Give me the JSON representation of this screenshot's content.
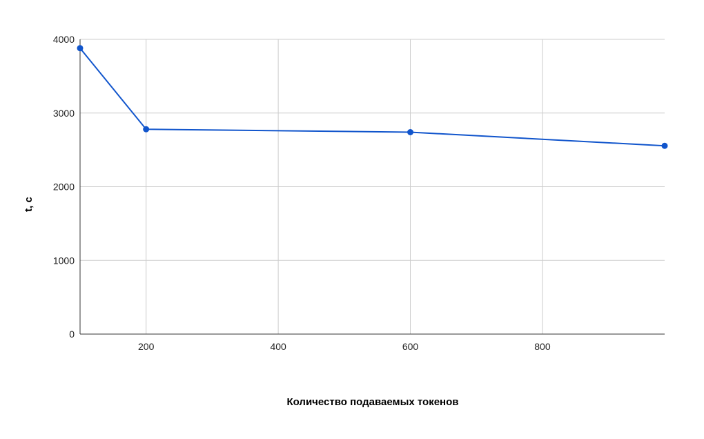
{
  "chart_data": {
    "type": "line",
    "title": "",
    "xlabel": "Количество подаваемых токенов",
    "ylabel": "t, с",
    "x": [
      100,
      200,
      600,
      985
    ],
    "series": [
      {
        "values": [
          3880,
          2780,
          2740,
          2555
        ]
      }
    ],
    "xlim": [
      100,
      985
    ],
    "ylim": [
      0,
      4000
    ],
    "xticks": [
      200,
      400,
      600,
      800
    ],
    "yticks": [
      0,
      1000,
      2000,
      3000,
      4000
    ],
    "grid": true,
    "legend": "none",
    "line_color": "#1155cc",
    "grid_color": "#cccccc",
    "axis_color": "#333333"
  }
}
